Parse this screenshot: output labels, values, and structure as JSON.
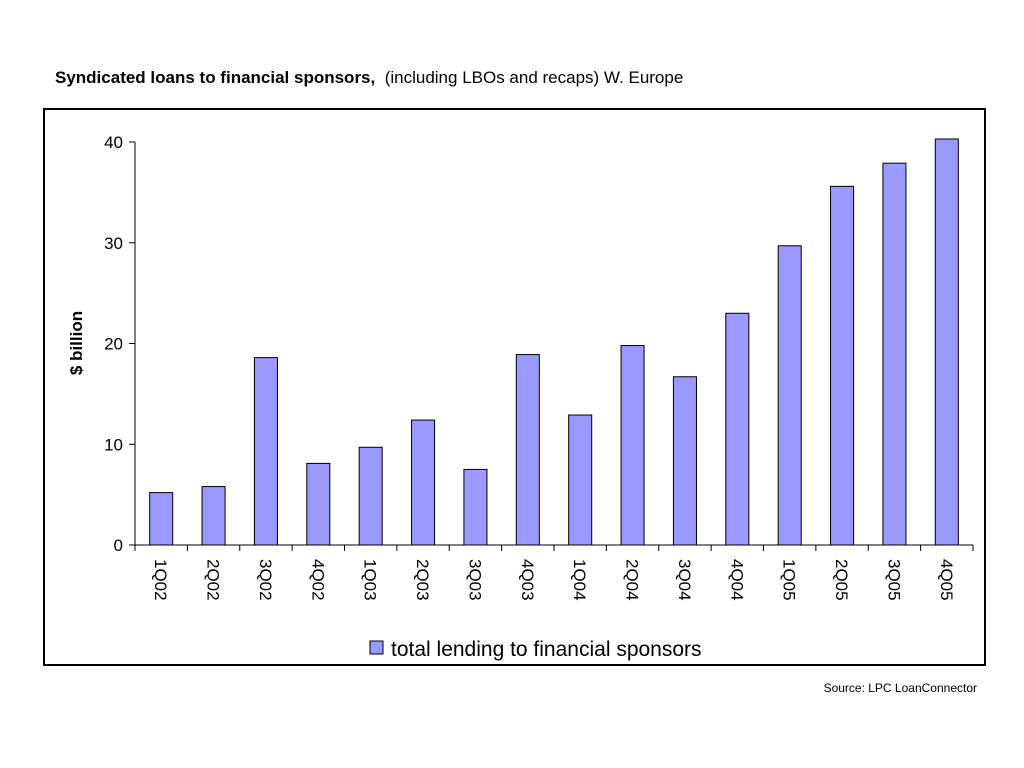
{
  "header": {
    "title_bold": "Syndicated loans to financial sponsors,",
    "title_rest": "(including LBOs and recaps) W. Europe"
  },
  "footer": {
    "source": "Source: LPC LoanConnector"
  },
  "chart_data": {
    "type": "bar",
    "categories": [
      "1Q02",
      "2Q02",
      "3Q02",
      "4Q02",
      "1Q03",
      "2Q03",
      "3Q03",
      "4Q03",
      "1Q04",
      "2Q04",
      "3Q04",
      "4Q04",
      "1Q05",
      "2Q05",
      "3Q05",
      "4Q05"
    ],
    "series": [
      {
        "name": "total lending to financial sponsors",
        "values": [
          5.2,
          5.8,
          18.6,
          8.1,
          9.7,
          12.4,
          7.5,
          18.9,
          12.9,
          19.8,
          16.7,
          23.0,
          29.7,
          35.6,
          37.9,
          40.3
        ]
      }
    ],
    "ylabel": "$ billion",
    "xlabel": "",
    "ylim": [
      0,
      40
    ],
    "yticks": [
      "0",
      "10",
      "20",
      "30",
      "40"
    ],
    "bar_color": "#9999ff",
    "grid": false,
    "legend_position": "bottom"
  }
}
